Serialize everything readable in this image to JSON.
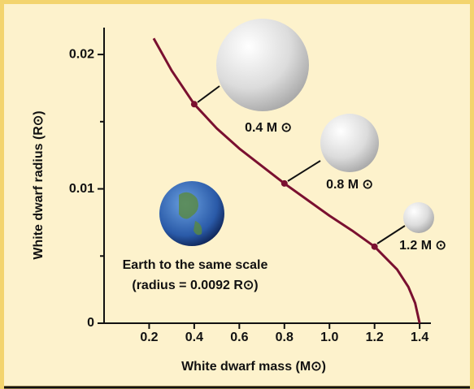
{
  "chart_data": {
    "type": "line",
    "x_label": "White dwarf mass (M⊙)",
    "y_label": "White dwarf radius (R⊙)",
    "x": [
      0.22,
      0.3,
      0.4,
      0.5,
      0.6,
      0.7,
      0.8,
      0.9,
      1.0,
      1.1,
      1.2,
      1.3,
      1.35,
      1.38,
      1.4
    ],
    "series": [
      {
        "color": "#7a1030",
        "values": [
          0.0212,
          0.0188,
          0.0163,
          0.0145,
          0.013,
          0.0117,
          0.0104,
          0.0092,
          0.008,
          0.0069,
          0.0057,
          0.004,
          0.0027,
          0.0015,
          0
        ]
      }
    ],
    "points": {
      "x": [
        0.4,
        0.8,
        1.2
      ],
      "values": [
        0.0163,
        0.0104,
        0.0057
      ],
      "labels": [
        "0.4 M ⊙",
        "0.8 M ⊙",
        "1.2 M ⊙"
      ]
    },
    "annotations": [
      "Earth to the same scale",
      "(radius = 0.0092 R⊙)"
    ],
    "xlim": [
      0,
      1.45
    ],
    "ylim": [
      0,
      0.022
    ],
    "xticks": [
      0.2,
      0.4,
      0.6,
      0.8,
      1.0,
      1.2,
      1.4
    ],
    "yticks": [
      0,
      0.01,
      0.02
    ],
    "yminorticks": [
      0.005,
      0.015
    ]
  }
}
